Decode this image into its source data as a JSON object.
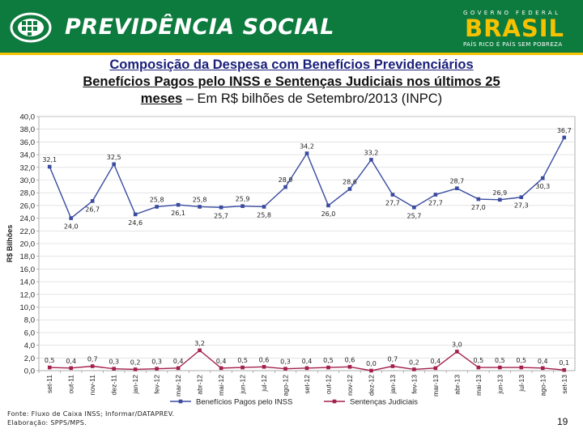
{
  "header": {
    "brand": "PREVIDÊNCIA SOCIAL",
    "gov_label": "GOVERNO FEDERAL",
    "country": "BRASIL",
    "slogan": "PAÍS RICO É PAÍS SEM POBREZA",
    "colors": {
      "background": "#0d7a3e",
      "accent": "#f6c200"
    }
  },
  "title": {
    "line1": "Composição da Despesa com Benefícios Previdenciários",
    "line2": "Benefícios Pagos pelo INSS e Sentenças Judiciais nos últimos 25",
    "line3_bold": "meses",
    "line3_rest": " – Em R$ bilhões de Setembro/2013 (INPC)"
  },
  "chart_data": {
    "type": "line",
    "categories": [
      "set-11",
      "out-11",
      "nov-11",
      "dez-11",
      "jan-12",
      "fev-12",
      "mar-12",
      "abr-12",
      "mai-12",
      "jun-12",
      "jul-12",
      "ago-12",
      "set-12",
      "out-12",
      "nov-12",
      "dez-12",
      "jan-13",
      "fev-13",
      "mar-13",
      "abr-13",
      "mai-13",
      "jun-13",
      "jul-13",
      "ago-13",
      "set-13"
    ],
    "ylabel": "R$ Bilhões",
    "ylim": [
      0,
      40
    ],
    "yticks": [
      "0,0",
      "2,0",
      "4,0",
      "6,0",
      "8,0",
      "10,0",
      "12,0",
      "14,0",
      "16,0",
      "18,0",
      "20,0",
      "22,0",
      "24,0",
      "26,0",
      "28,0",
      "30,0",
      "32,0",
      "34,0",
      "36,0",
      "38,0",
      "40,0"
    ],
    "grid": true,
    "legend_position": "bottom",
    "series": [
      {
        "name": "Benefícios Pagos pelo INSS",
        "color": "#3a4ba0",
        "values": [
          32.1,
          24.0,
          26.7,
          32.5,
          24.6,
          25.8,
          26.1,
          25.8,
          25.7,
          25.9,
          25.8,
          28.9,
          34.2,
          26.0,
          28.6,
          33.2,
          27.7,
          25.7,
          27.7,
          28.7,
          27.0,
          26.9,
          27.3,
          30.3,
          36.7
        ],
        "labels": [
          "32,1",
          "24,0",
          "26,7",
          "32,5",
          "24,6",
          "25,8",
          "26,1",
          "25,8",
          "25,7",
          "25,9",
          "25,8",
          "28,9",
          "34,2",
          "26,0",
          "28,6",
          "33,2",
          "27,7",
          "25,7",
          "27,7",
          "28,7",
          "27,0",
          "26,9",
          "27,3",
          "30,3",
          "36,7"
        ]
      },
      {
        "name": "Sentenças Judiciais",
        "color": "#a3204a",
        "values": [
          0.5,
          0.4,
          0.7,
          0.3,
          0.2,
          0.3,
          0.4,
          3.2,
          0.4,
          0.5,
          0.6,
          0.3,
          0.4,
          0.5,
          0.6,
          0.0,
          0.7,
          0.2,
          0.4,
          3.0,
          0.5,
          0.5,
          0.5,
          0.4,
          0.1
        ],
        "labels": [
          "0,5",
          "0,4",
          "0,7",
          "0,3",
          "0,2",
          "0,3",
          "0,4",
          "3,2",
          "0,4",
          "0,5",
          "0,6",
          "0,3",
          "0,4",
          "0,5",
          "0,6",
          "0,0",
          "0,7",
          "0,2",
          "0,4",
          "3,0",
          "0,5",
          "0,5",
          "0,5",
          "0,4",
          "0,1"
        ]
      }
    ]
  },
  "footnote": {
    "source": "Fonte: Fluxo de Caixa INSS; Informar/DATAPREV.",
    "prepared": "Elaboração: SPPS/MPS."
  },
  "page_number": "19"
}
